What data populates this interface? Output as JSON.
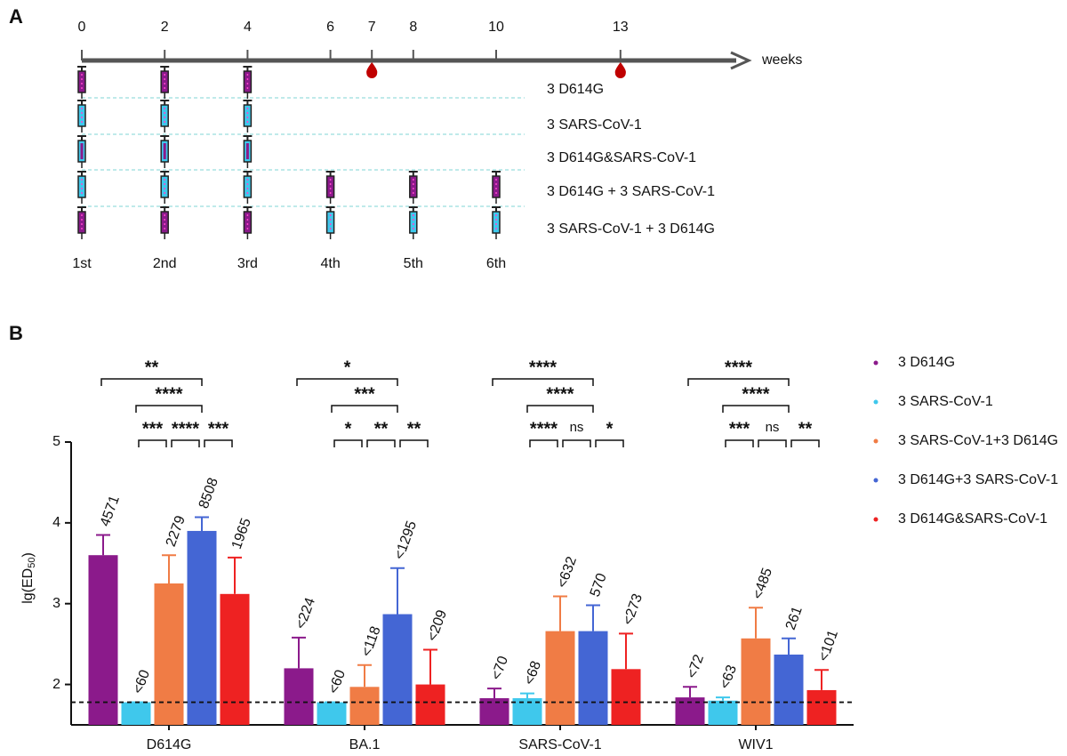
{
  "panel_a": {
    "letter": "A",
    "weeks": [
      0,
      2,
      4,
      6,
      7,
      8,
      10,
      13
    ],
    "unit": "weeks",
    "bleeds": [
      7,
      13
    ],
    "doses": [
      {
        "label": "1st",
        "week": 0
      },
      {
        "label": "2nd",
        "week": 2
      },
      {
        "label": "3rd",
        "week": 4
      },
      {
        "label": "4th",
        "week": 6
      },
      {
        "label": "5th",
        "week": 8
      },
      {
        "label": "6th",
        "week": 10
      }
    ],
    "rows": [
      {
        "label": "3 D614G",
        "syringes": [
          [
            "#8b1a8b"
          ],
          [
            "#8b1a8b"
          ],
          [
            "#8b1a8b"
          ]
        ]
      },
      {
        "label": "3 SARS-CoV-1",
        "syringes": [
          [
            "#3fc8ec"
          ],
          [
            "#3fc8ec"
          ],
          [
            "#3fc8ec"
          ]
        ]
      },
      {
        "label": "3 D614G&SARS-CoV-1",
        "syringes": [
          [
            "#3fc8ec",
            "#8b1a8b"
          ],
          [
            "#3fc8ec",
            "#8b1a8b"
          ],
          [
            "#3fc8ec",
            "#8b1a8b"
          ]
        ]
      },
      {
        "label": "3 D614G + 3 SARS-CoV-1",
        "syringes": [
          [
            "#3fc8ec"
          ],
          [
            "#3fc8ec"
          ],
          [
            "#3fc8ec"
          ],
          [
            "#8b1a8b"
          ],
          [
            "#8b1a8b"
          ],
          [
            "#8b1a8b"
          ]
        ]
      },
      {
        "label": "3 SARS-CoV-1 + 3 D614G",
        "syringes": [
          [
            "#8b1a8b"
          ],
          [
            "#8b1a8b"
          ],
          [
            "#8b1a8b"
          ],
          [
            "#3fc8ec"
          ],
          [
            "#3fc8ec"
          ],
          [
            "#3fc8ec"
          ]
        ]
      }
    ]
  },
  "chart_data": {
    "type": "bar",
    "letter": "B",
    "y_label": [
      "lg(ED",
      "50",
      ")"
    ],
    "categories": [
      "D614G",
      "BA.1",
      "SARS-CoV-1",
      "WIV1"
    ],
    "series": [
      {
        "name": "3 D614G",
        "color": "#8b1a8b",
        "values": [
          3.6,
          2.2,
          1.83,
          1.84
        ],
        "errors": [
          0.25,
          0.38,
          0.12,
          0.13
        ],
        "labels": [
          "4571",
          "<224",
          "<70",
          "<72"
        ]
      },
      {
        "name": "3 SARS-CoV-1",
        "color": "#3fc8ec",
        "values": [
          1.78,
          1.78,
          1.83,
          1.8
        ],
        "errors": [
          0,
          0,
          0.06,
          0.04
        ],
        "labels": [
          "<60",
          "<60",
          "<68",
          "<63"
        ]
      },
      {
        "name": "3 SARS-CoV-1+3 D614G",
        "color": "#f07c45",
        "values": [
          3.25,
          1.97,
          2.66,
          2.57
        ],
        "errors": [
          0.35,
          0.27,
          0.43,
          0.38
        ],
        "labels": [
          "2279",
          "<118",
          "<632",
          "<485"
        ]
      },
      {
        "name": "3 D614G+3 SARS-CoV-1",
        "color": "#4466d4",
        "values": [
          3.9,
          2.87,
          2.66,
          2.37
        ],
        "errors": [
          0.17,
          0.57,
          0.32,
          0.2
        ],
        "labels": [
          "8508",
          "<1295",
          "570",
          "261"
        ]
      },
      {
        "name": "3 D614G&SARS-CoV-1",
        "color": "#ee2222",
        "values": [
          3.12,
          2.0,
          2.19,
          1.93
        ],
        "errors": [
          0.45,
          0.43,
          0.44,
          0.25
        ],
        "labels": [
          "1965",
          "<209",
          "<273",
          "<101"
        ]
      }
    ],
    "ylim": [
      1.5,
      5
    ],
    "yticks": [
      2,
      3,
      4,
      5
    ],
    "threshold": 1.78,
    "legend": "right",
    "significance": [
      [
        {
          "from": 0,
          "to": 3,
          "level": 0,
          "label": "**"
        },
        {
          "from": 1,
          "to": 3,
          "level": 1,
          "label": "****"
        },
        {
          "from": 1,
          "to": 2,
          "level": 2,
          "label": "***"
        },
        {
          "from": 2,
          "to": 3,
          "level": 2,
          "label": "****"
        },
        {
          "from": 3,
          "to": 4,
          "level": 2,
          "label": "***"
        }
      ],
      [
        {
          "from": 0,
          "to": 3,
          "level": 0,
          "label": "*"
        },
        {
          "from": 1,
          "to": 3,
          "level": 1,
          "label": "***"
        },
        {
          "from": 1,
          "to": 2,
          "level": 2,
          "label": "*"
        },
        {
          "from": 2,
          "to": 3,
          "level": 2,
          "label": "**"
        },
        {
          "from": 3,
          "to": 4,
          "level": 2,
          "label": "**"
        }
      ],
      [
        {
          "from": 0,
          "to": 3,
          "level": 0,
          "label": "****"
        },
        {
          "from": 1,
          "to": 3,
          "level": 1,
          "label": "****"
        },
        {
          "from": 1,
          "to": 2,
          "level": 2,
          "label": "****"
        },
        {
          "from": 2,
          "to": 3,
          "level": 2,
          "label": "ns"
        },
        {
          "from": 3,
          "to": 4,
          "level": 2,
          "label": "*"
        }
      ],
      [
        {
          "from": 0,
          "to": 3,
          "level": 0,
          "label": "****"
        },
        {
          "from": 1,
          "to": 3,
          "level": 1,
          "label": "****"
        },
        {
          "from": 1,
          "to": 2,
          "level": 2,
          "label": "***"
        },
        {
          "from": 2,
          "to": 3,
          "level": 2,
          "label": "ns"
        },
        {
          "from": 3,
          "to": 4,
          "level": 2,
          "label": "**"
        }
      ]
    ]
  }
}
